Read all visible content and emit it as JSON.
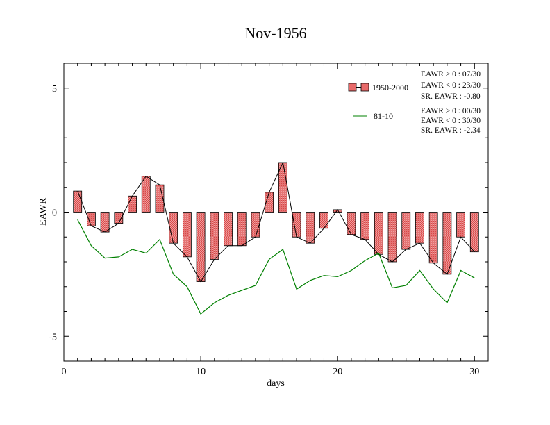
{
  "chart_data": {
    "type": "bar",
    "title": "Nov-1956",
    "xlabel": "days",
    "ylabel": "EAWR",
    "xlim": [
      0,
      31
    ],
    "ylim": [
      -6,
      6
    ],
    "x_ticks": [
      0,
      10,
      20,
      30
    ],
    "y_ticks": [
      -5,
      0,
      5
    ],
    "x": [
      1,
      2,
      3,
      4,
      5,
      6,
      7,
      8,
      9,
      10,
      11,
      12,
      13,
      14,
      15,
      16,
      17,
      18,
      19,
      20,
      21,
      22,
      23,
      24,
      25,
      26,
      27,
      28,
      29,
      30
    ],
    "series": [
      {
        "name": "1950-2000",
        "kind": "bar",
        "color": "#e86a6a",
        "values": [
          0.85,
          -0.55,
          -0.8,
          -0.45,
          0.65,
          1.45,
          1.1,
          -1.25,
          -1.8,
          -2.8,
          -1.9,
          -1.35,
          -1.35,
          -1.0,
          0.8,
          2.0,
          -1.0,
          -1.25,
          -0.65,
          0.1,
          -0.9,
          -1.1,
          -1.7,
          -2.0,
          -1.5,
          -1.25,
          -2.05,
          -2.5,
          -1.0,
          -1.6
        ]
      },
      {
        "name": "81-10",
        "kind": "line",
        "color": "#008000",
        "values": [
          -0.3,
          -1.35,
          -1.85,
          -1.8,
          -1.5,
          -1.65,
          -1.1,
          -2.5,
          -3.0,
          -4.1,
          -3.65,
          -3.35,
          -3.15,
          -2.95,
          -1.9,
          -1.5,
          -3.1,
          -2.75,
          -2.55,
          -2.6,
          -2.35,
          -1.95,
          -1.65,
          -3.05,
          -2.95,
          -2.35,
          -3.1,
          -3.65,
          -2.35,
          -2.65
        ]
      }
    ],
    "legend": [
      {
        "label": "1950-2000",
        "stats": [
          "EAWR > 0 : 07/30",
          "EAWR < 0 : 23/30",
          "SR. EAWR : -0.80"
        ]
      },
      {
        "label": "81-10",
        "stats": [
          "EAWR > 0 : 00/30",
          "EAWR < 0 : 30/30",
          "SR. EAWR : -2.34"
        ]
      }
    ],
    "legend_position": "top-right",
    "grid": false
  }
}
